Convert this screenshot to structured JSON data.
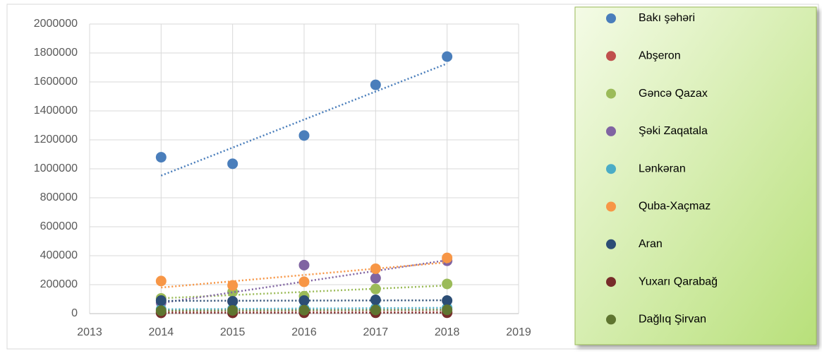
{
  "chart_data": {
    "type": "scatter",
    "x": [
      2014,
      2015,
      2016,
      2017,
      2018
    ],
    "xlim": [
      2013,
      2019
    ],
    "xticks": [
      2013,
      2014,
      2015,
      2016,
      2017,
      2018,
      2019
    ],
    "ylim": [
      0,
      2000000
    ],
    "yticks": [
      0,
      200000,
      400000,
      600000,
      800000,
      1000000,
      1200000,
      1400000,
      1600000,
      1800000,
      2000000
    ],
    "grid": true,
    "trendline": true,
    "legend": "right",
    "series": [
      {
        "name": "Bakı şəhəri",
        "color": "#4a7ebb",
        "values": [
          1080000,
          1035000,
          1230000,
          1580000,
          1775000
        ]
      },
      {
        "name": "Abşeron",
        "color": "#c0504d",
        "values": [
          8000,
          9000,
          10000,
          10000,
          11000
        ]
      },
      {
        "name": "Gəncə Qazax",
        "color": "#9bbb59",
        "values": [
          105000,
          150000,
          120000,
          170000,
          205000
        ]
      },
      {
        "name": "Şəki Zaqatala",
        "color": "#8064a2",
        "values": [
          75000,
          85000,
          335000,
          245000,
          365000
        ]
      },
      {
        "name": "Lənkəran",
        "color": "#4bacc6",
        "values": [
          30000,
          32000,
          35000,
          38000,
          40000
        ]
      },
      {
        "name": "Quba-Xaçmaz",
        "color": "#f79646",
        "values": [
          225000,
          195000,
          220000,
          310000,
          385000
        ]
      },
      {
        "name": "Aran",
        "color": "#2c4d75",
        "values": [
          90000,
          85000,
          90000,
          95000,
          90000
        ]
      },
      {
        "name": "Yuxarı Qarabağ",
        "color": "#772c2a",
        "values": [
          5000,
          5000,
          6000,
          6000,
          6000
        ]
      },
      {
        "name": "Dağlıq Şirvan",
        "color": "#5f7530",
        "values": [
          20000,
          22000,
          24000,
          25000,
          26000
        ]
      }
    ]
  }
}
